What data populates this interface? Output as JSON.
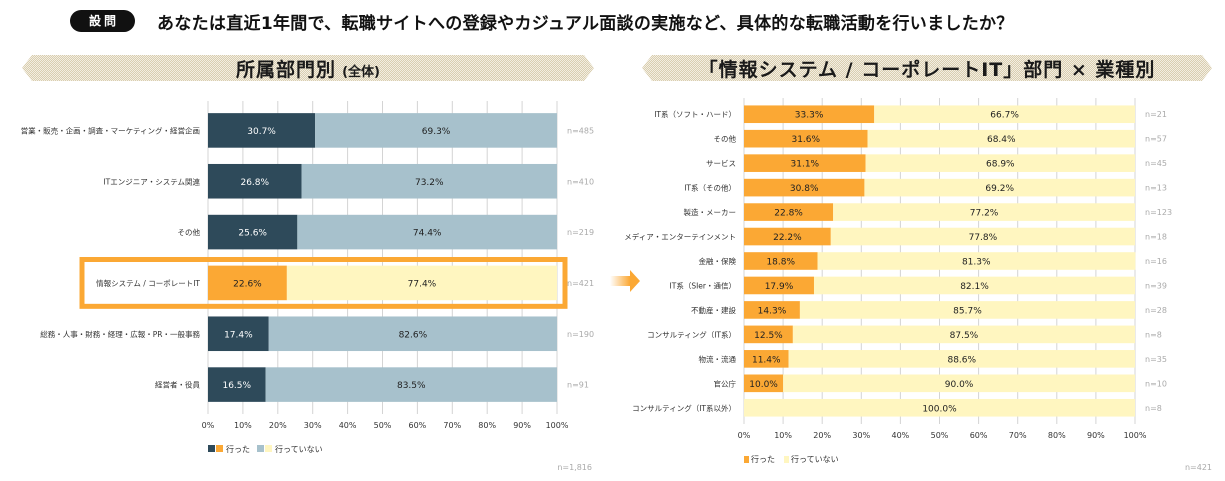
{
  "question": {
    "badge": "設問",
    "text": "あなたは直近1年間で、転職サイトへの登録やカジュアル面談の実施など、具体的な転職活動を行いましたか？"
  },
  "colors": {
    "went_dark": "#2e4a5a",
    "not_went_blue": "#a7c1cc",
    "went_orange": "#fba834",
    "not_went_cream": "#fff6c0",
    "highlight_border": "#fba834",
    "banner_fill": "#e6dcc4",
    "grid": "#d4d4d4"
  },
  "left_banner": {
    "title": "所属部門別",
    "subtitle": "(全体)"
  },
  "right_banner": {
    "title": "「情報システム / コーポレートIT」部門 × 業種別"
  },
  "chart_data": [
    {
      "type": "bar",
      "orientation": "horizontal",
      "stacked": "percent",
      "title": "所属部門別 (全体)",
      "categories": [
        "営業・販売・企画・調査・マーケティング・経営企画",
        "ITエンジニア・システム関連",
        "その他",
        "情報システム / コーポレートIT",
        "総務・人事・財務・経理・広報・PR・一般事務",
        "経営者・役員"
      ],
      "series": [
        {
          "name": "行った",
          "values": [
            30.7,
            26.8,
            25.6,
            22.6,
            17.4,
            16.5
          ]
        },
        {
          "name": "行っていない",
          "values": [
            69.3,
            73.2,
            74.4,
            77.4,
            82.6,
            83.5
          ]
        }
      ],
      "value_labels_went": [
        "30.7%",
        "26.8%",
        "25.6%",
        "22.6%",
        "17.4%",
        "16.5%"
      ],
      "value_labels_not": [
        "69.3%",
        "73.2%",
        "74.4%",
        "77.4%",
        "82.6%",
        "83.5%"
      ],
      "n_labels": [
        "n=485",
        "n=410",
        "n=219",
        "n=421",
        "n=190",
        "n=91"
      ],
      "highlighted_category": "情報システム / コーポレートIT",
      "xlim": [
        0,
        100
      ],
      "x_ticks": [
        "0%",
        "10%",
        "20%",
        "30%",
        "40%",
        "50%",
        "60%",
        "70%",
        "80%",
        "90%",
        "100%"
      ],
      "grid": true,
      "legend": [
        "行った",
        "行っていない"
      ],
      "legend_placement": "bottom-left",
      "total_n": "n=1,816"
    },
    {
      "type": "bar",
      "orientation": "horizontal",
      "stacked": "percent",
      "title": "「情報システム / コーポレートIT」部門 × 業種別",
      "categories": [
        "IT系（ソフト・ハード）",
        "その他",
        "サービス",
        "IT系（その他）",
        "製造・メーカー",
        "メディア・エンターテインメント",
        "金融・保険",
        "IT系（SIer・通信）",
        "不動産・建設",
        "コンサルティング（IT系）",
        "物流・流通",
        "官公庁",
        "コンサルティング（IT系以外）"
      ],
      "series": [
        {
          "name": "行った",
          "values": [
            33.3,
            31.6,
            31.1,
            30.8,
            22.8,
            22.2,
            18.8,
            17.9,
            14.3,
            12.5,
            11.4,
            10.0,
            0
          ]
        },
        {
          "name": "行っていない",
          "values": [
            66.7,
            68.4,
            68.9,
            69.2,
            77.2,
            77.8,
            81.3,
            82.1,
            85.7,
            87.5,
            88.6,
            90.0,
            100.0
          ]
        }
      ],
      "value_labels_went": [
        "33.3%",
        "31.6%",
        "31.1%",
        "30.8%",
        "22.8%",
        "22.2%",
        "18.8%",
        "17.9%",
        "14.3%",
        "12.5%",
        "11.4%",
        "10.0%",
        ""
      ],
      "value_labels_not": [
        "66.7%",
        "68.4%",
        "68.9%",
        "69.2%",
        "77.2%",
        "77.8%",
        "81.3%",
        "82.1%",
        "85.7%",
        "87.5%",
        "88.6%",
        "90.0%",
        "100.0%"
      ],
      "n_labels": [
        "n=21",
        "n=57",
        "n=45",
        "n=13",
        "n=123",
        "n=18",
        "n=16",
        "n=39",
        "n=28",
        "n=8",
        "n=35",
        "n=10",
        "n=8"
      ],
      "xlim": [
        0,
        100
      ],
      "x_ticks": [
        "0%",
        "10%",
        "20%",
        "30%",
        "40%",
        "50%",
        "60%",
        "70%",
        "80%",
        "90%",
        "100%"
      ],
      "grid": true,
      "legend": [
        "行った",
        "行っていない"
      ],
      "legend_placement": "bottom-left",
      "total_n": "n=421"
    }
  ]
}
